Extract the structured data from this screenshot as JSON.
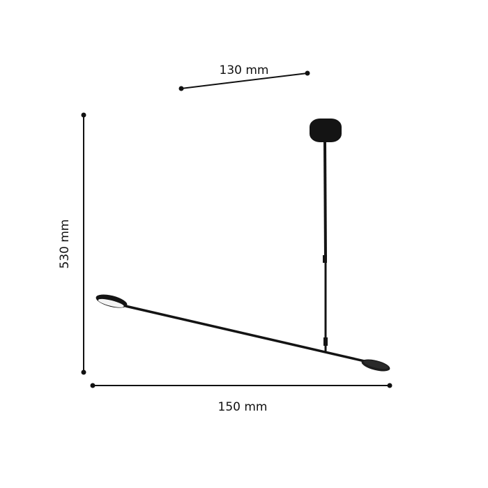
{
  "dimensions": {
    "top": {
      "label": "130 mm"
    },
    "height": {
      "label": "530 mm"
    },
    "width": {
      "label": "150 mm"
    }
  },
  "colors": {
    "line": "#111111",
    "lamp": "#141414",
    "background": "#ffffff"
  }
}
